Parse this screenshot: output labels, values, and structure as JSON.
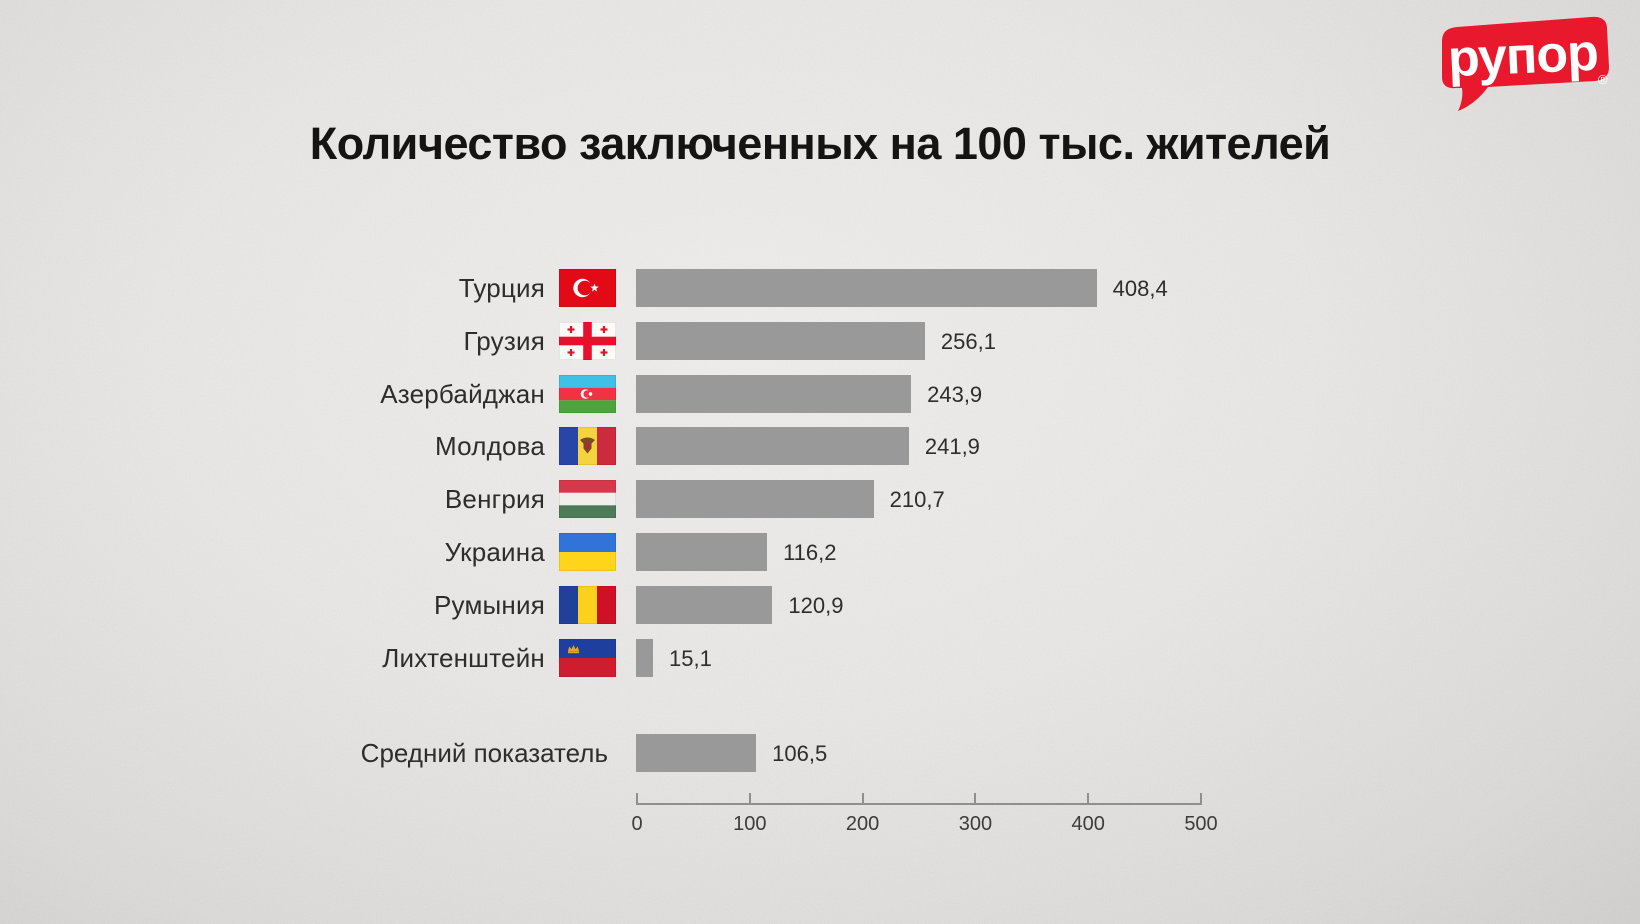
{
  "page": {
    "background_color": "#e8e6e4",
    "text_color": "#2d2d2d"
  },
  "logo": {
    "text": "рупор",
    "registered_mark": "®",
    "color": "#e8192c",
    "text_color": "#ffffff"
  },
  "chart_data": {
    "type": "bar",
    "orientation": "horizontal",
    "title": "Количество заключенных на 100 тыс. жителей",
    "categories": [
      "Турция",
      "Грузия",
      "Азербайджан",
      "Молдова",
      "Венгрия",
      "Украина",
      "Румыния",
      "Лихтенштейн"
    ],
    "values": [
      408.4,
      256.1,
      243.9,
      241.9,
      210.7,
      116.2,
      120.9,
      15.1
    ],
    "value_labels": [
      "408,4",
      "256,1",
      "243,9",
      "241,9",
      "210,7",
      "116,2",
      "120,9",
      "15,1"
    ],
    "flags": [
      "turkey",
      "georgia",
      "azerbaijan",
      "moldova",
      "hungary",
      "ukraine",
      "romania",
      "liechtenstein"
    ],
    "summary_row": {
      "label": "Средний показатель",
      "value": 106.5,
      "value_label": "106,5"
    },
    "xlim": [
      0,
      500
    ],
    "x_ticks": [
      0,
      100,
      200,
      300,
      400,
      500
    ],
    "x_tick_labels": [
      "0",
      "100",
      "200",
      "300",
      "400",
      "500"
    ],
    "bar_color": "#999999",
    "grid": false,
    "legend": false
  }
}
